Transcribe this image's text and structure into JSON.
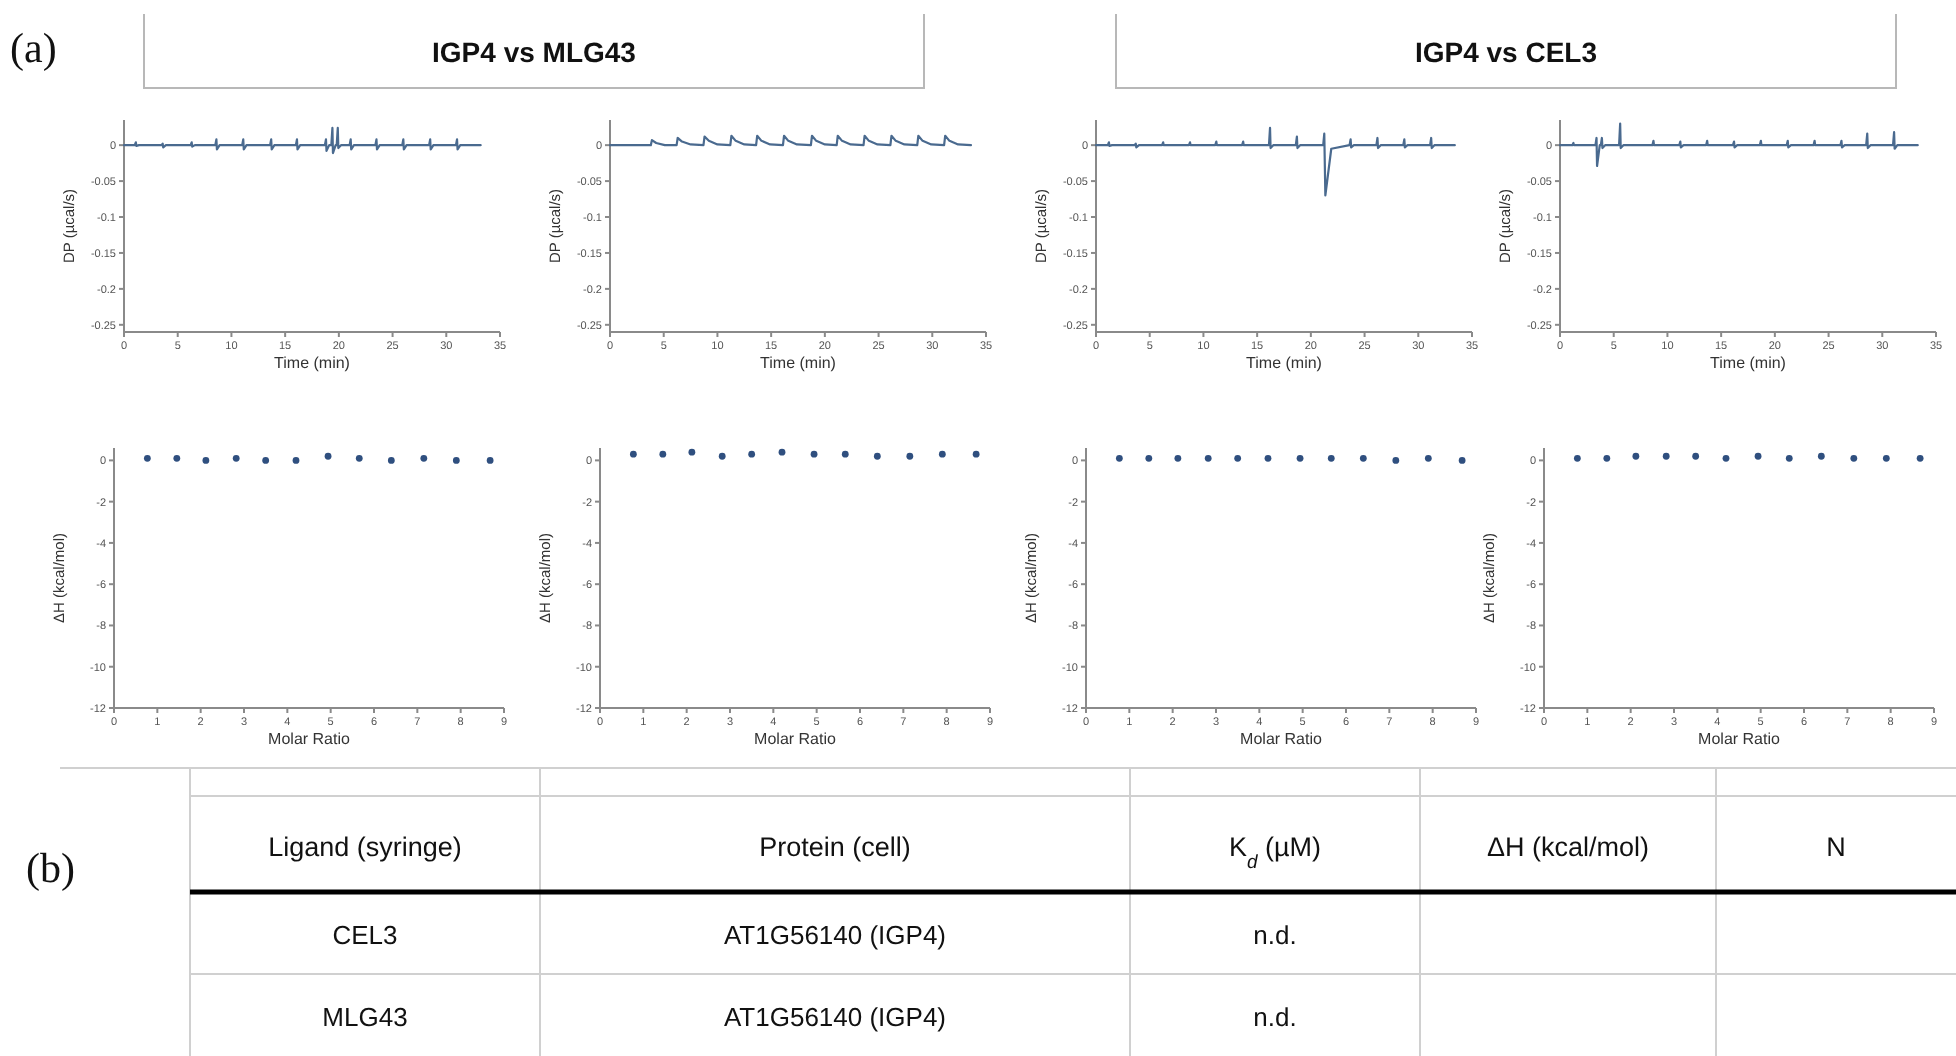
{
  "chart_data": [
    {
      "type": "line",
      "title": "IGP4 vs MLG43",
      "annotations": [
        "(a)"
      ],
      "xlabel": "Time (min)",
      "ylabel": "DP (µcal/s)",
      "xlim": [
        0,
        35
      ],
      "xticks": [
        0,
        5,
        10,
        15,
        20,
        25,
        30,
        35
      ],
      "ylim": [
        -0.26,
        0.035
      ],
      "yticks": [
        0,
        -0.05,
        -0.1,
        -0.15,
        -0.2,
        -0.25
      ],
      "series": [
        {
          "color": "#4a6a8f",
          "x": [
            0,
            1.0,
            1.1,
            1.15,
            1.4,
            3.5,
            3.6,
            3.65,
            3.9,
            6.2,
            6.3,
            6.35,
            6.6,
            8.5,
            8.6,
            8.65,
            8.9,
            11.0,
            11.1,
            11.15,
            11.4,
            13.6,
            13.7,
            13.75,
            14.0,
            16.0,
            16.1,
            16.15,
            16.4,
            18.7,
            18.8,
            18.85,
            19.1,
            19.3,
            19.4,
            19.45,
            19.7,
            19.8,
            19.9,
            19.95,
            20.2,
            21.0,
            21.1,
            21.15,
            21.4,
            23.4,
            23.5,
            23.55,
            23.8,
            25.9,
            26.0,
            26.05,
            26.3,
            28.4,
            28.5,
            28.55,
            28.8,
            30.9,
            31.0,
            31.05,
            31.3,
            33.2
          ],
          "values": [
            0,
            0,
            0.004,
            -0.001,
            0,
            0,
            0.002,
            -0.003,
            0,
            0,
            0.004,
            -0.002,
            0,
            0,
            0.008,
            -0.006,
            0,
            0,
            0.008,
            -0.006,
            0,
            0,
            0.008,
            -0.006,
            0,
            0,
            0.008,
            -0.006,
            0,
            0,
            0.008,
            -0.008,
            0,
            0,
            0.024,
            -0.011,
            0,
            0,
            0.024,
            -0.004,
            0,
            0,
            0.008,
            -0.006,
            0,
            0,
            0.008,
            -0.006,
            0,
            0,
            0.008,
            -0.006,
            0,
            0,
            0.008,
            -0.006,
            0,
            0,
            0.008,
            -0.006,
            0,
            0
          ]
        }
      ]
    },
    {
      "type": "line",
      "xlabel": "Time (min)",
      "ylabel": "DP (µcal/s)",
      "xlim": [
        0,
        35
      ],
      "xticks": [
        0,
        5,
        10,
        15,
        20,
        25,
        30,
        35
      ],
      "ylim": [
        -0.26,
        0.035
      ],
      "yticks": [
        0,
        -0.05,
        -0.1,
        -0.15,
        -0.2,
        -0.25
      ],
      "series": [
        {
          "color": "#4a6a8f",
          "x": [
            0,
            3.8,
            3.9,
            4.3,
            5.1,
            6.2,
            6.3,
            6.7,
            7.5,
            8.7,
            8.8,
            9.2,
            10.0,
            11.2,
            11.3,
            11.7,
            12.5,
            13.6,
            13.7,
            14.1,
            14.9,
            16.1,
            16.2,
            16.6,
            17.4,
            18.7,
            18.8,
            19.2,
            20.0,
            21.1,
            21.2,
            21.6,
            22.4,
            23.6,
            23.7,
            24.1,
            24.9,
            26.1,
            26.2,
            26.6,
            27.4,
            28.6,
            28.7,
            29.1,
            29.9,
            31.1,
            31.2,
            31.6,
            32.4,
            33.6
          ],
          "values": [
            0,
            0,
            0.007,
            0.003,
            0,
            0,
            0.01,
            0.005,
            0.001,
            0,
            0.012,
            0.006,
            0.001,
            0,
            0.013,
            0.006,
            0.001,
            0,
            0.013,
            0.006,
            0.001,
            0,
            0.013,
            0.006,
            0.001,
            0,
            0.013,
            0.006,
            0.001,
            0,
            0.013,
            0.006,
            0.001,
            0,
            0.013,
            0.006,
            0.001,
            0,
            0.013,
            0.006,
            0.001,
            0,
            0.013,
            0.006,
            0.001,
            0,
            0.013,
            0.006,
            0.001,
            0
          ]
        }
      ]
    },
    {
      "type": "line",
      "title": "IGP4 vs CEL3",
      "xlabel": "Time (min)",
      "ylabel": "DP (µcal/s)",
      "xlim": [
        0,
        35
      ],
      "xticks": [
        0,
        5,
        10,
        15,
        20,
        25,
        30,
        35
      ],
      "ylim": [
        -0.26,
        0.035
      ],
      "yticks": [
        0,
        -0.05,
        -0.1,
        -0.15,
        -0.2,
        -0.25
      ],
      "series": [
        {
          "color": "#4a6a8f",
          "x": [
            0,
            1.1,
            1.2,
            1.25,
            1.5,
            3.6,
            3.7,
            3.75,
            4.0,
            6.15,
            6.25,
            6.3,
            6.55,
            8.65,
            8.75,
            8.8,
            9.05,
            11.1,
            11.2,
            11.25,
            11.5,
            13.6,
            13.7,
            13.75,
            14.0,
            16.1,
            16.2,
            16.25,
            16.5,
            18.6,
            18.7,
            18.75,
            19.0,
            21.15,
            21.25,
            21.35,
            21.9,
            23.6,
            23.7,
            23.75,
            24.0,
            26.1,
            26.2,
            26.25,
            26.5,
            28.6,
            28.7,
            28.75,
            29.0,
            31.1,
            31.2,
            31.25,
            31.5,
            33.4
          ],
          "values": [
            0,
            0,
            0.004,
            -0.001,
            0,
            0,
            0.002,
            -0.003,
            0,
            0,
            0.004,
            0,
            0,
            0,
            0.004,
            0,
            0,
            0,
            0.005,
            0,
            0,
            0,
            0.005,
            0,
            0,
            0,
            0.024,
            -0.004,
            0,
            0,
            0.012,
            -0.004,
            0,
            0,
            0.016,
            -0.07,
            -0.005,
            0,
            0.008,
            -0.003,
            0,
            0,
            0.01,
            -0.004,
            0,
            0,
            0.008,
            -0.003,
            0,
            0,
            0.01,
            -0.004,
            0,
            0
          ]
        }
      ]
    },
    {
      "type": "line",
      "xlabel": "Time (min)",
      "ylabel": "DP (µcal/s)",
      "xlim": [
        0,
        35
      ],
      "xticks": [
        0,
        5,
        10,
        15,
        20,
        25,
        30,
        35
      ],
      "ylim": [
        -0.26,
        0.035
      ],
      "yticks": [
        0,
        -0.05,
        -0.1,
        -0.15,
        -0.2,
        -0.25
      ],
      "series": [
        {
          "color": "#4a6a8f",
          "x": [
            0,
            1.15,
            1.25,
            1.3,
            1.55,
            3.3,
            3.4,
            3.45,
            3.7,
            3.8,
            3.9,
            3.95,
            4.2,
            5.5,
            5.6,
            5.65,
            5.9,
            8.6,
            8.7,
            8.75,
            9.0,
            11.1,
            11.2,
            11.25,
            11.5,
            13.6,
            13.7,
            13.75,
            14.0,
            16.1,
            16.2,
            16.25,
            16.5,
            18.6,
            18.7,
            18.75,
            19.0,
            21.1,
            21.2,
            21.25,
            21.5,
            23.6,
            23.7,
            23.75,
            24.0,
            26.1,
            26.2,
            26.25,
            26.5,
            28.5,
            28.6,
            28.65,
            28.9,
            31.0,
            31.1,
            31.15,
            31.4,
            33.3
          ],
          "values": [
            0,
            0,
            0.003,
            0,
            0,
            0,
            0.01,
            -0.029,
            0,
            0,
            0.01,
            -0.004,
            0,
            0,
            0.03,
            -0.004,
            0,
            0,
            0.006,
            0,
            0,
            0,
            0.005,
            -0.003,
            0,
            0,
            0.006,
            0,
            0,
            0,
            0.005,
            -0.003,
            0,
            0,
            0.006,
            0,
            0,
            0,
            0.006,
            -0.003,
            0,
            0,
            0.006,
            0,
            0,
            0,
            0.006,
            -0.003,
            0,
            0,
            0.016,
            -0.004,
            0,
            0,
            0.018,
            -0.005,
            0,
            0
          ]
        }
      ]
    },
    {
      "type": "scatter",
      "marker": "circle",
      "xlabel": "Molar Ratio",
      "ylabel": "ΔH (kcal/mol)",
      "xlim": [
        0,
        9
      ],
      "xticks": [
        0,
        1,
        2,
        3,
        4,
        5,
        6,
        7,
        8,
        9
      ],
      "ylim": [
        -12,
        0.6
      ],
      "yticks": [
        0,
        -2,
        -4,
        -6,
        -8,
        -10,
        -12
      ],
      "series": [
        {
          "color": "#2f4f7f",
          "x": [
            0.77,
            1.45,
            2.12,
            2.82,
            3.5,
            4.2,
            4.94,
            5.66,
            6.4,
            7.15,
            7.9,
            8.68
          ],
          "values": [
            0.1,
            0.1,
            0,
            0.1,
            0,
            0,
            0.2,
            0.1,
            0,
            0.1,
            0,
            0
          ]
        }
      ]
    },
    {
      "type": "scatter",
      "marker": "circle",
      "xlabel": "Molar Ratio",
      "ylabel": "ΔH (kcal/mol)",
      "xlim": [
        0,
        9
      ],
      "xticks": [
        0,
        1,
        2,
        3,
        4,
        5,
        6,
        7,
        8,
        9
      ],
      "ylim": [
        -12,
        0.6
      ],
      "yticks": [
        0,
        -2,
        -4,
        -6,
        -8,
        -10,
        -12
      ],
      "series": [
        {
          "color": "#2f4f7f",
          "x": [
            0.77,
            1.45,
            2.12,
            2.82,
            3.5,
            4.2,
            4.94,
            5.66,
            6.4,
            7.15,
            7.9,
            8.68
          ],
          "values": [
            0.3,
            0.3,
            0.4,
            0.2,
            0.3,
            0.4,
            0.3,
            0.3,
            0.2,
            0.2,
            0.3,
            0.3
          ]
        }
      ]
    },
    {
      "type": "scatter",
      "marker": "circle",
      "xlabel": "Molar Ratio",
      "ylabel": "ΔH (kcal/mol)",
      "xlim": [
        0,
        9
      ],
      "xticks": [
        0,
        1,
        2,
        3,
        4,
        5,
        6,
        7,
        8,
        9
      ],
      "ylim": [
        -12,
        0.6
      ],
      "yticks": [
        0,
        -2,
        -4,
        -6,
        -8,
        -10,
        -12
      ],
      "series": [
        {
          "color": "#2f4f7f",
          "x": [
            0.77,
            1.45,
            2.12,
            2.82,
            3.5,
            4.2,
            4.94,
            5.66,
            6.4,
            7.15,
            7.9,
            8.68
          ],
          "values": [
            0.1,
            0.1,
            0.1,
            0.1,
            0.1,
            0.1,
            0.1,
            0.1,
            0.1,
            0,
            0.1,
            0
          ]
        }
      ]
    },
    {
      "type": "scatter",
      "marker": "circle",
      "xlabel": "Molar Ratio",
      "ylabel": "ΔH (kcal/mol)",
      "xlim": [
        0,
        9
      ],
      "xticks": [
        0,
        1,
        2,
        3,
        4,
        5,
        6,
        7,
        8,
        9
      ],
      "ylim": [
        -12,
        0.6
      ],
      "yticks": [
        0,
        -2,
        -4,
        -6,
        -8,
        -10,
        -12
      ],
      "series": [
        {
          "color": "#2f4f7f",
          "x": [
            0.77,
            1.45,
            2.12,
            2.82,
            3.5,
            4.2,
            4.94,
            5.66,
            6.4,
            7.15,
            7.9,
            8.68
          ],
          "values": [
            0.1,
            0.1,
            0.2,
            0.2,
            0.2,
            0.1,
            0.2,
            0.1,
            0.2,
            0.1,
            0.1,
            0.1
          ]
        }
      ]
    },
    {
      "type": "other",
      "annotations": [
        "(b)"
      ],
      "categories": [
        "Ligand (syringe)",
        "Protein (cell)",
        "K$_{d}$ (µM)",
        "ΔH (kcal/mol)",
        "N"
      ],
      "cell_labels": [
        [
          "CEL3",
          "AT1G56140 (IGP4)",
          "n.d.",
          null,
          null
        ],
        [
          "MLG43",
          "AT1G56140 (IGP4)",
          "n.d.",
          null,
          null
        ]
      ]
    }
  ]
}
